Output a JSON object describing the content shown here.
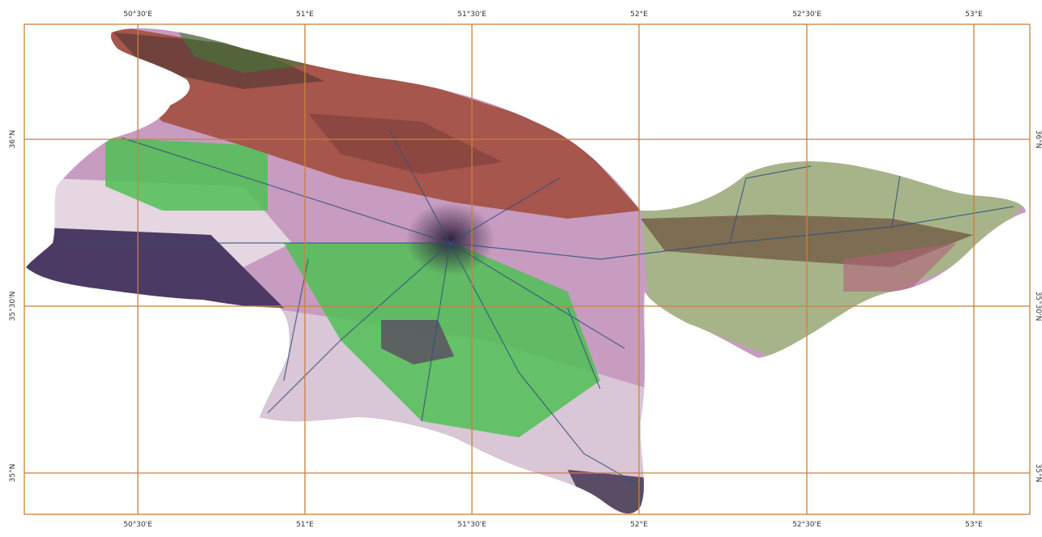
{
  "map": {
    "grid_color": "#c8813f",
    "top_labels": [
      "50°30'E",
      "51°E",
      "51°30'E",
      "52°E",
      "52°30'E",
      "53°E"
    ],
    "bottom_labels": [
      "50°30'E",
      "51°E",
      "51°30'E",
      "52°E",
      "52°30'E",
      "53°E"
    ],
    "left_labels": [
      "36°N",
      "35°30'N",
      "35°N"
    ],
    "right_labels": [
      "36°N",
      "35°30'N",
      "35°N"
    ],
    "colors": {
      "mountains_red": "#a6564c",
      "mountains_dark": "#5a3a35",
      "agri_green": "#4fbf53",
      "plains_pink": "#c79cc0",
      "plains_light": "#e6d6e2",
      "dark_purple": "#4b3a63",
      "east_olive": "#a7b489",
      "rivers": "#2f4f7d",
      "city": "#3a2a45"
    }
  }
}
